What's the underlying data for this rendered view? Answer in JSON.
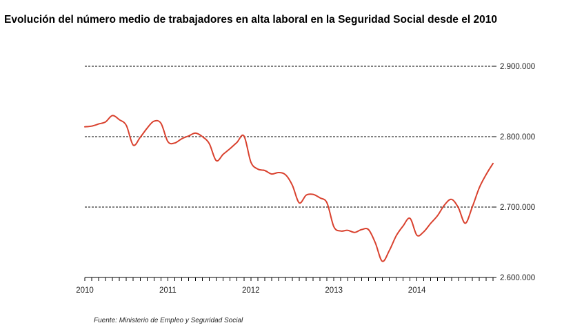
{
  "chart_data": {
    "type": "line",
    "title": "Evolución del número medio de trabajadores en alta laboral en la Seguridad Social desde el 2010",
    "xlabel": "",
    "ylabel": "",
    "x_ticks": [
      "2010",
      "2011",
      "2012",
      "2013",
      "2014"
    ],
    "y_ticks": [
      "2.900.000",
      "2.800.000",
      "2.700.000",
      "2.600.000"
    ],
    "ylim": [
      2600000,
      2900000
    ],
    "xlim": [
      2010.0,
      2014.917
    ],
    "grid": "horizontal dashed",
    "y_axis_side": "right",
    "line_color": "#d9412e",
    "x": [
      2010.0,
      2010.083,
      2010.167,
      2010.25,
      2010.333,
      2010.417,
      2010.5,
      2010.583,
      2010.667,
      2010.75,
      2010.833,
      2010.917,
      2011.0,
      2011.083,
      2011.167,
      2011.25,
      2011.333,
      2011.417,
      2011.5,
      2011.583,
      2011.667,
      2011.75,
      2011.833,
      2011.917,
      2012.0,
      2012.083,
      2012.167,
      2012.25,
      2012.333,
      2012.417,
      2012.5,
      2012.583,
      2012.667,
      2012.75,
      2012.833,
      2012.917,
      2013.0,
      2013.083,
      2013.167,
      2013.25,
      2013.333,
      2013.417,
      2013.5,
      2013.583,
      2013.667,
      2013.75,
      2013.833,
      2013.917,
      2014.0,
      2014.083,
      2014.167,
      2014.25,
      2014.333,
      2014.417,
      2014.5,
      2014.583,
      2014.667,
      2014.75,
      2014.833,
      2014.917
    ],
    "series": [
      {
        "values": [
          2814000,
          2815000,
          2818000,
          2821000,
          2830000,
          2824000,
          2816000,
          2788000,
          2799000,
          2812000,
          2822000,
          2819000,
          2793000,
          2791000,
          2797000,
          2801000,
          2805000,
          2800000,
          2790000,
          2766000,
          2775000,
          2783000,
          2792000,
          2801000,
          2764000,
          2754000,
          2752000,
          2747000,
          2749000,
          2746000,
          2731000,
          2706000,
          2717000,
          2718000,
          2713000,
          2706000,
          2672000,
          2666000,
          2667000,
          2664000,
          2668000,
          2668000,
          2649000,
          2623000,
          2638000,
          2659000,
          2673000,
          2684000,
          2660000,
          2665000,
          2677000,
          2688000,
          2703000,
          2711000,
          2699000,
          2677000,
          2700000,
          2727000,
          2746000,
          2762000
        ]
      }
    ]
  },
  "source": "Fuente: Ministerio de Empleo y Seguridad Social"
}
